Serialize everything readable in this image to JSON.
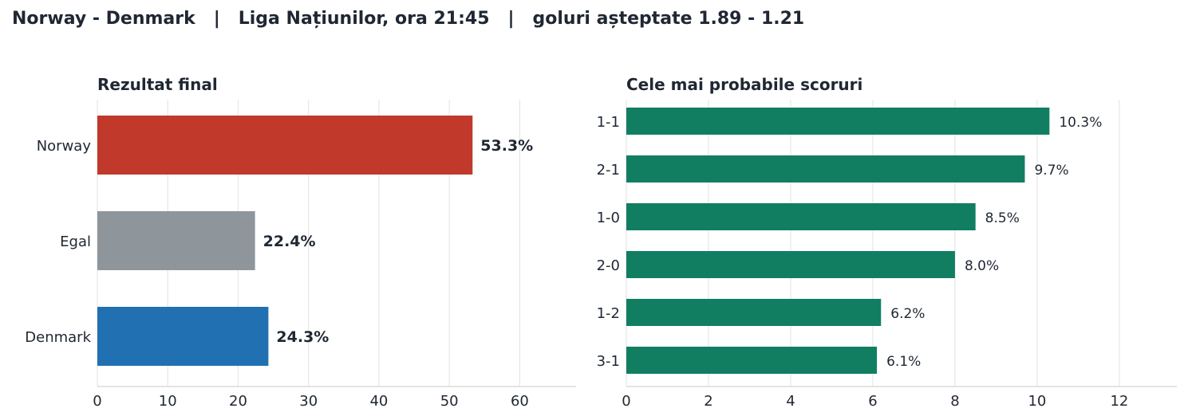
{
  "header": {
    "title": "Norway - Denmark   |   Liga Națiunilor, ora 21:45   |   goluri așteptate 1.89 - 1.21"
  },
  "chart_data": [
    {
      "type": "bar",
      "orientation": "horizontal",
      "title": "Rezultat final",
      "categories": [
        "Norway",
        "Egal",
        "Denmark"
      ],
      "values": [
        53.3,
        22.4,
        24.3
      ],
      "value_labels": [
        "53.3%",
        "22.4%",
        "24.3%"
      ],
      "colors": [
        "#c0392b",
        "#8e959b",
        "#2170b2"
      ],
      "xlim": [
        0,
        68
      ],
      "xticks": [
        0,
        10,
        20,
        30,
        40,
        50,
        60
      ],
      "grid": true
    },
    {
      "type": "bar",
      "orientation": "horizontal",
      "title": "Cele mai probabile scoruri",
      "categories": [
        "1-1",
        "2-1",
        "1-0",
        "2-0",
        "1-2",
        "3-1"
      ],
      "values": [
        10.3,
        9.7,
        8.5,
        8.0,
        6.2,
        6.1
      ],
      "value_labels": [
        "10.3%",
        "9.7%",
        "8.5%",
        "8.0%",
        "6.2%",
        "6.1%"
      ],
      "colors": [
        "#117e62"
      ],
      "xlim": [
        0,
        13.4
      ],
      "xticks": [
        0,
        2,
        4,
        6,
        8,
        10,
        12
      ],
      "grid": true
    }
  ]
}
